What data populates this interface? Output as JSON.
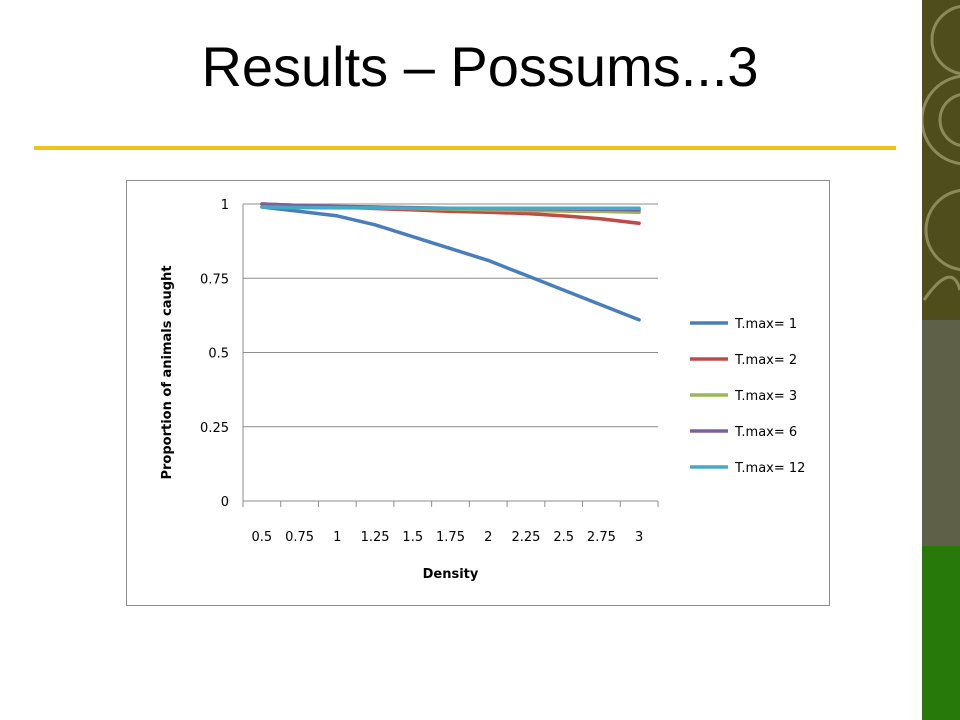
{
  "slide": {
    "title": "Results – Possums...3"
  },
  "colors": {
    "accent_rule": "#f0c21c",
    "band_top": "#4f4d1c",
    "band_middle": "#5f6048",
    "band_bottom": "#277a0a"
  },
  "chart_data": {
    "type": "line",
    "xlabel": "Density",
    "ylabel": "Proportion of animals caught",
    "categories": [
      "0.5",
      "0.75",
      "1",
      "1.25",
      "1.5",
      "1.75",
      "2",
      "2.25",
      "2.5",
      "2.75",
      "3"
    ],
    "y_ticks": [
      "0",
      "0.25",
      "0.5",
      "0.75",
      "1"
    ],
    "ylim": [
      0,
      1
    ],
    "grid": true,
    "legend_position": "right",
    "series": [
      {
        "name": "T.max= 1",
        "color": "#4a7ebb",
        "values": [
          0.99,
          0.975,
          0.96,
          0.93,
          0.89,
          0.85,
          0.81,
          0.76,
          0.71,
          0.66,
          0.61
        ]
      },
      {
        "name": "T.max= 2",
        "color": "#be4b48",
        "values": [
          1.0,
          0.995,
          0.99,
          0.985,
          0.98,
          0.975,
          0.972,
          0.968,
          0.96,
          0.95,
          0.935
        ]
      },
      {
        "name": "T.max= 3",
        "color": "#98b954",
        "values": [
          1.0,
          0.995,
          0.99,
          0.99,
          0.985,
          0.983,
          0.98,
          0.978,
          0.976,
          0.975,
          0.972
        ]
      },
      {
        "name": "T.max= 6",
        "color": "#7d60a0",
        "values": [
          1.0,
          0.995,
          0.992,
          0.99,
          0.988,
          0.986,
          0.985,
          0.984,
          0.983,
          0.982,
          0.98
        ]
      },
      {
        "name": "T.max= 12",
        "color": "#46aac5",
        "values": [
          0.99,
          0.988,
          0.987,
          0.987,
          0.986,
          0.986,
          0.986,
          0.986,
          0.986,
          0.986,
          0.986
        ]
      }
    ]
  }
}
